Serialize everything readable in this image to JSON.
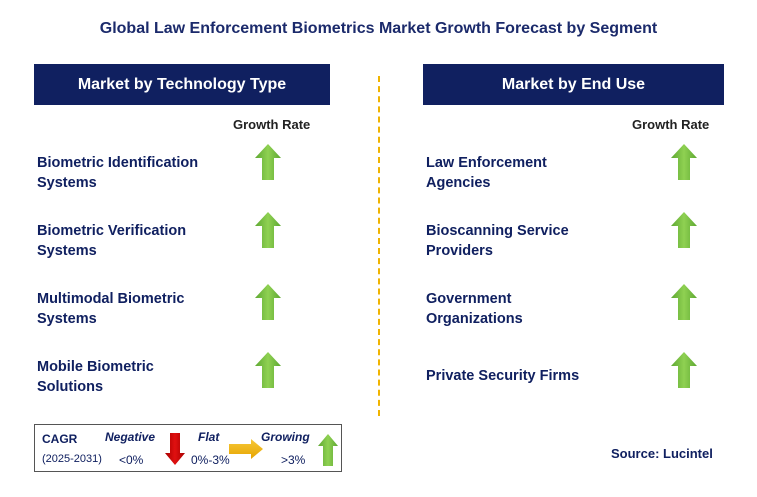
{
  "title": "Global Law Enforcement Biometrics Market Growth Forecast by Segment",
  "left_panel": {
    "header": "Market by Technology Type",
    "growth_label": "Growth Rate",
    "items": [
      {
        "line1": "Biometric Identification",
        "line2": "Systems",
        "trend": "growing"
      },
      {
        "line1": "Biometric Verification",
        "line2": "Systems",
        "trend": "growing"
      },
      {
        "line1": "Multimodal Biometric",
        "line2": "Systems",
        "trend": "growing"
      },
      {
        "line1": "Mobile Biometric",
        "line2": "Solutions",
        "trend": "growing"
      }
    ]
  },
  "right_panel": {
    "header": "Market by End Use",
    "growth_label": "Growth Rate",
    "items": [
      {
        "line1": "Law Enforcement",
        "line2": "Agencies",
        "trend": "growing"
      },
      {
        "line1": "Bioscanning Service",
        "line2": "Providers",
        "trend": "growing"
      },
      {
        "line1": "Government",
        "line2": "Organizations",
        "trend": "growing"
      },
      {
        "line1": "Private Security Firms",
        "line2": "",
        "trend": "growing"
      }
    ]
  },
  "legend": {
    "cagr_label": "CAGR",
    "period": "(2025-2031)",
    "negative_label": "Negative",
    "negative_range": "<0%",
    "flat_label": "Flat",
    "flat_range": "0%-3%",
    "growing_label": "Growing",
    "growing_range": ">3%"
  },
  "source": "Source: Lucintel",
  "colors": {
    "header_bg": "#102060",
    "title_text": "#1b2a6b",
    "arrow_up": "#7ac143",
    "arrow_down": "#cc0000",
    "arrow_flat": "#f5b800",
    "divider": "#f0b400"
  }
}
